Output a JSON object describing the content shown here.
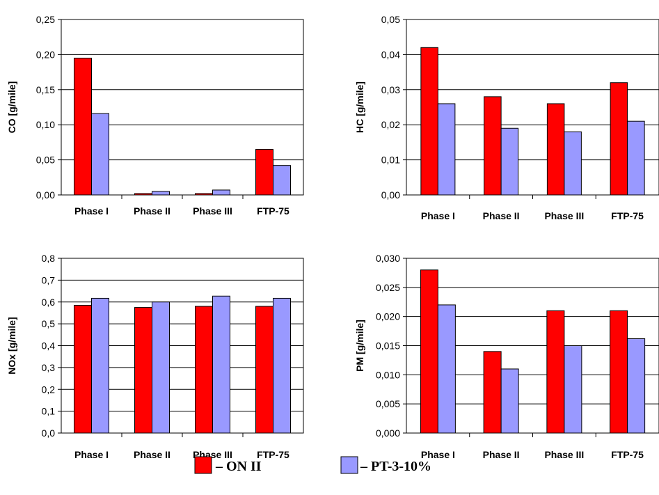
{
  "chart_data": [
    {
      "type": "bar",
      "ylabel": "CO [g/mile]",
      "categories": [
        "Phase I",
        "Phase II",
        "Phase III",
        "FTP-75"
      ],
      "yticks": [
        "0,00",
        "0,05",
        "0,10",
        "0,15",
        "0,20",
        "0,25"
      ],
      "ylim": [
        0,
        0.25
      ],
      "grid": true,
      "series": [
        {
          "name": "– ON II",
          "values": [
            0.195,
            0.002,
            0.002,
            0.065
          ]
        },
        {
          "name": "– PT-3-10%",
          "values": [
            0.116,
            0.005,
            0.007,
            0.042
          ]
        }
      ]
    },
    {
      "type": "bar",
      "ylabel": "HC [g/mile]",
      "categories": [
        "Phase I",
        "Phase II",
        "Phase III",
        "FTP-75"
      ],
      "yticks": [
        "0,00",
        "0,01",
        "0,02",
        "0,03",
        "0,04",
        "0,05"
      ],
      "ylim": [
        0,
        0.05
      ],
      "grid": true,
      "series": [
        {
          "name": "– ON II",
          "values": [
            0.042,
            0.028,
            0.026,
            0.032
          ]
        },
        {
          "name": "– PT-3-10%",
          "values": [
            0.026,
            0.019,
            0.018,
            0.021
          ]
        }
      ]
    },
    {
      "type": "bar",
      "ylabel": "NOx [g/mile]",
      "categories": [
        "Phase I",
        "Phase II",
        "Phase III",
        "FTP-75"
      ],
      "yticks": [
        "0,0",
        "0,1",
        "0,2",
        "0,3",
        "0,4",
        "0,5",
        "0,6",
        "0,7",
        "0,8"
      ],
      "ylim": [
        0,
        0.8
      ],
      "grid": true,
      "series": [
        {
          "name": "– ON II",
          "values": [
            0.585,
            0.575,
            0.58,
            0.58
          ]
        },
        {
          "name": "– PT-3-10%",
          "values": [
            0.617,
            0.6,
            0.627,
            0.617
          ]
        }
      ]
    },
    {
      "type": "bar",
      "ylabel": "PM [g/mile]",
      "categories": [
        "Phase I",
        "Phase II",
        "Phase III",
        "FTP-75"
      ],
      "yticks": [
        "0,000",
        "0,005",
        "0,010",
        "0,015",
        "0,020",
        "0,025",
        "0,030"
      ],
      "ylim": [
        0,
        0.03
      ],
      "grid": true,
      "series": [
        {
          "name": "– ON II",
          "values": [
            0.028,
            0.014,
            0.021,
            0.021
          ]
        },
        {
          "name": "– PT-3-10%",
          "values": [
            0.022,
            0.011,
            0.015,
            0.0162
          ]
        }
      ]
    }
  ],
  "legend": {
    "placement": "bottom",
    "items": [
      {
        "label": "– ON II",
        "color": "#ff0000"
      },
      {
        "label": "– PT-3-10%",
        "color": "#9999ff"
      }
    ]
  },
  "colors": {
    "series_1": "#ff0000",
    "series_2": "#9999ff",
    "outline": "#000000"
  }
}
